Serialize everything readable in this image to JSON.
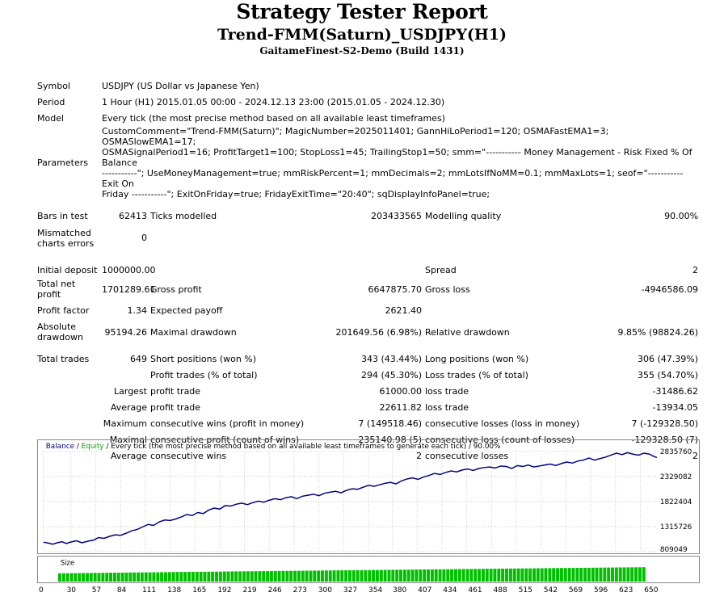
{
  "report": {
    "title": "Strategy Tester Report",
    "subtitle": "Trend-FMM(Saturn)_USDJPY(H1)",
    "server": "GaitameFinest-S2-Demo (Build 1431)"
  },
  "info": {
    "symbol_label": "Symbol",
    "symbol": "USDJPY (US Dollar vs Japanese Yen)",
    "period_label": "Period",
    "period": "1 Hour (H1) 2015.01.05 00:00 - 2024.12.13 23:00 (2015.01.05 - 2024.12.30)",
    "model_label": "Model",
    "model": "Every tick (the most precise method based on all available least timeframes)",
    "params_label": "Parameters",
    "params_1": "CustomComment=\"Trend-FMM(Saturn)\"; MagicNumber=2025011401; GannHiLoPeriod1=120; OSMAFastEMA1=3; OSMASlowEMA1=17;",
    "params_2": "OSMASignalPeriod1=16; ProfitTarget1=100; StopLoss1=45; TrailingStop1=50; smm=\"----------- Money Management - Risk Fixed % Of Balance",
    "params_3": "-----------\"; UseMoneyManagement=true; mmRiskPercent=1; mmDecimals=2; mmLotsIfNoMM=0.1; mmMaxLots=1; seof=\"----------- Exit On",
    "params_4": "Friday -----------\"; ExitOnFriday=true; FridayExitTime=\"20:40\"; sqDisplayInfoPanel=true;"
  },
  "stats": {
    "bars_label": "Bars in test",
    "bars": "62413",
    "ticks_label": "Ticks modelled",
    "ticks": "203433565",
    "quality_label": "Modelling quality",
    "quality": "90.00%",
    "mismatch_label_1": "Mismatched",
    "mismatch_label_2": "charts errors",
    "mismatch": "0",
    "deposit_label": "Initial deposit",
    "deposit": "1000000.00",
    "spread_label": "Spread",
    "spread": "2",
    "netprofit_label_1": "Total net",
    "netprofit_label_2": "profit",
    "netprofit": "1701289.61",
    "grossprofit_label": "Gross profit",
    "grossprofit": "6647875.70",
    "grossloss_label": "Gross loss",
    "grossloss": "-4946586.09",
    "pf_label": "Profit factor",
    "pf": "1.34",
    "payoff_label": "Expected payoff",
    "payoff": "2621.40",
    "absdd_label_1": "Absolute",
    "absdd_label_2": "drawdown",
    "absdd": "95194.26",
    "maxdd_label": "Maximal drawdown",
    "maxdd": "201649.56 (6.98%)",
    "reldd_label": "Relative drawdown",
    "reldd": "9.85% (98824.26)",
    "trades_label": "Total trades",
    "trades": "649",
    "short_label": "Short positions (won %)",
    "short": "343 (43.44%)",
    "long_label": "Long positions (won %)",
    "long": "306 (47.39%)",
    "ptrades_label": "Profit trades (% of total)",
    "ptrades": "294 (45.30%)",
    "ltrades_label": "Loss trades (% of total)",
    "ltrades": "355 (54.70%)",
    "largest": "Largest",
    "avg": "Average",
    "maximum": "Maximum",
    "maximal": "Maximal",
    "lpt_label": "profit trade",
    "lpt": "61000.00",
    "llt_label": "loss trade",
    "llt": "-31486.62",
    "apt_label": "profit trade",
    "apt": "22611.82",
    "alt_label": "loss trade",
    "alt": "-13934.05",
    "mcw_label": "consecutive wins (profit in money)",
    "mcw": "7 (149518.46)",
    "mcl_label": "consecutive losses (loss in money)",
    "mcl": "7 (-129328.50)",
    "mcp_label": "consecutive profit (count of wins)",
    "mcp": "235140.98 (5)",
    "mclc_label": "consecutive loss (count of losses)",
    "mclc": "-129328.50 (7)",
    "acw_label": "consecutive wins",
    "acw": "2",
    "acl_label": "consecutive losses",
    "acl": "2"
  },
  "chart_data": {
    "type": "line",
    "legend": {
      "balance": "Balance",
      "sep1": " / ",
      "equity": "Equity",
      "desc": " / Every tick (the most precise method based on all available least timeframes to generate each tick) / 90.00%"
    },
    "colors": {
      "balance": "#00007f",
      "equity": "#00a000",
      "size_bars": "#00c000",
      "grid": "#c8c8c8"
    },
    "yticks": [
      "2835760",
      "2329082",
      "1822404",
      "1315726",
      "809049"
    ],
    "ylim": [
      809049,
      2835760
    ],
    "xlim": [
      0,
      668
    ],
    "xticks": [
      "0",
      "30",
      "57",
      "84",
      "111",
      "138",
      "165",
      "192",
      "219",
      "246",
      "273",
      "300",
      "327",
      "354",
      "380",
      "407",
      "434",
      "461",
      "488",
      "515",
      "542",
      "569",
      "596",
      "623",
      "650"
    ],
    "size_label": "Size",
    "balance": [
      [
        0,
        1000000
      ],
      [
        5,
        985000
      ],
      [
        10,
        960000
      ],
      [
        15,
        990000
      ],
      [
        20,
        1010000
      ],
      [
        25,
        975000
      ],
      [
        30,
        1005000
      ],
      [
        36,
        1030000
      ],
      [
        42,
        990000
      ],
      [
        48,
        1020000
      ],
      [
        55,
        1045000
      ],
      [
        60,
        1095000
      ],
      [
        66,
        1080000
      ],
      [
        72,
        1120000
      ],
      [
        78,
        1150000
      ],
      [
        84,
        1140000
      ],
      [
        90,
        1180000
      ],
      [
        96,
        1230000
      ],
      [
        102,
        1260000
      ],
      [
        108,
        1310000
      ],
      [
        114,
        1360000
      ],
      [
        120,
        1340000
      ],
      [
        126,
        1410000
      ],
      [
        132,
        1450000
      ],
      [
        138,
        1440000
      ],
      [
        144,
        1470000
      ],
      [
        150,
        1510000
      ],
      [
        156,
        1560000
      ],
      [
        162,
        1540000
      ],
      [
        168,
        1600000
      ],
      [
        174,
        1580000
      ],
      [
        180,
        1650000
      ],
      [
        186,
        1690000
      ],
      [
        192,
        1670000
      ],
      [
        198,
        1740000
      ],
      [
        204,
        1730000
      ],
      [
        210,
        1770000
      ],
      [
        216,
        1790000
      ],
      [
        222,
        1760000
      ],
      [
        228,
        1800000
      ],
      [
        234,
        1830000
      ],
      [
        240,
        1810000
      ],
      [
        246,
        1850000
      ],
      [
        252,
        1880000
      ],
      [
        258,
        1860000
      ],
      [
        264,
        1900000
      ],
      [
        270,
        1920000
      ],
      [
        276,
        1880000
      ],
      [
        282,
        1930000
      ],
      [
        288,
        1950000
      ],
      [
        294,
        1970000
      ],
      [
        300,
        1940000
      ],
      [
        306,
        1990000
      ],
      [
        312,
        2010000
      ],
      [
        318,
        2030000
      ],
      [
        324,
        2000000
      ],
      [
        330,
        2050000
      ],
      [
        336,
        2080000
      ],
      [
        342,
        2070000
      ],
      [
        348,
        2110000
      ],
      [
        354,
        2150000
      ],
      [
        360,
        2130000
      ],
      [
        366,
        2160000
      ],
      [
        372,
        2190000
      ],
      [
        378,
        2210000
      ],
      [
        384,
        2180000
      ],
      [
        390,
        2240000
      ],
      [
        396,
        2280000
      ],
      [
        402,
        2300000
      ],
      [
        408,
        2270000
      ],
      [
        414,
        2320000
      ],
      [
        420,
        2350000
      ],
      [
        426,
        2390000
      ],
      [
        432,
        2370000
      ],
      [
        438,
        2410000
      ],
      [
        444,
        2440000
      ],
      [
        450,
        2420000
      ],
      [
        456,
        2460000
      ],
      [
        462,
        2480000
      ],
      [
        468,
        2450000
      ],
      [
        474,
        2490000
      ],
      [
        480,
        2510000
      ],
      [
        486,
        2520000
      ],
      [
        492,
        2500000
      ],
      [
        498,
        2540000
      ],
      [
        504,
        2530000
      ],
      [
        510,
        2490000
      ],
      [
        516,
        2550000
      ],
      [
        522,
        2530000
      ],
      [
        528,
        2560000
      ],
      [
        534,
        2520000
      ],
      [
        540,
        2540000
      ],
      [
        546,
        2560000
      ],
      [
        552,
        2580000
      ],
      [
        558,
        2550000
      ],
      [
        564,
        2590000
      ],
      [
        570,
        2620000
      ],
      [
        576,
        2600000
      ],
      [
        582,
        2640000
      ],
      [
        588,
        2660000
      ],
      [
        594,
        2700000
      ],
      [
        600,
        2660000
      ],
      [
        606,
        2690000
      ],
      [
        612,
        2720000
      ],
      [
        618,
        2760000
      ],
      [
        624,
        2800000
      ],
      [
        630,
        2770000
      ],
      [
        636,
        2810000
      ],
      [
        642,
        2780000
      ],
      [
        648,
        2760000
      ],
      [
        654,
        2800000
      ],
      [
        660,
        2780000
      ],
      [
        664,
        2740000
      ],
      [
        668,
        2710289
      ]
    ],
    "size_value": 0.01
  }
}
